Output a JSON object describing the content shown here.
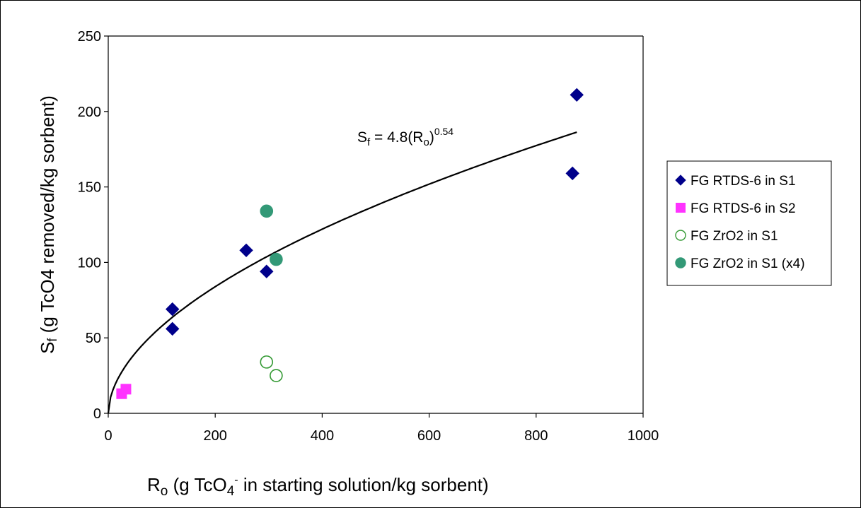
{
  "chart_data": {
    "type": "scatter",
    "title": "",
    "xlabel": {
      "prefix": "R",
      "sub": "o",
      "mid": " (g TcO",
      "sub2": "4",
      "sup": "-",
      "suffix": " in starting solution/kg sorbent)"
    },
    "ylabel": {
      "prefix": "S",
      "sub": "f",
      "rest": "  (g TcO4  removed/kg  sorbent)"
    },
    "xlim": [
      0,
      1000
    ],
    "ylim": [
      0,
      250
    ],
    "xticks": [
      0,
      200,
      400,
      600,
      800,
      1000
    ],
    "yticks": [
      0,
      50,
      100,
      150,
      200,
      250
    ],
    "grid": false,
    "legend_position": "right",
    "series": [
      {
        "name": "FG RTDS-6 in S1",
        "marker": "diamond",
        "color": "#00008B",
        "filled": true,
        "points": [
          [
            120,
            69
          ],
          [
            120,
            56
          ],
          [
            258,
            108
          ],
          [
            296,
            94
          ],
          [
            868,
            159
          ],
          [
            876,
            211
          ]
        ]
      },
      {
        "name": "FG RTDS-6 in S2",
        "marker": "square",
        "color": "#FF33FF",
        "filled": true,
        "points": [
          [
            25,
            13
          ],
          [
            33,
            16
          ]
        ]
      },
      {
        "name": "FG ZrO2 in S1",
        "marker": "circle",
        "color": "#339933",
        "filled": false,
        "points": [
          [
            296,
            34
          ],
          [
            314,
            25
          ]
        ]
      },
      {
        "name": "FG ZrO2 in S1 (x4)",
        "marker": "circle",
        "color": "#339977",
        "filled": true,
        "points": [
          [
            296,
            134
          ],
          [
            314,
            102
          ]
        ]
      }
    ],
    "fit": {
      "coefficient": 4.8,
      "exponent": 0.54,
      "x_range": [
        0,
        876
      ],
      "label": {
        "lhs": "S",
        "lhs_sub": "f",
        "mid": " = 4.8(R",
        "mid_sub": "o",
        "close": ")",
        "exp": "0.54"
      }
    }
  }
}
